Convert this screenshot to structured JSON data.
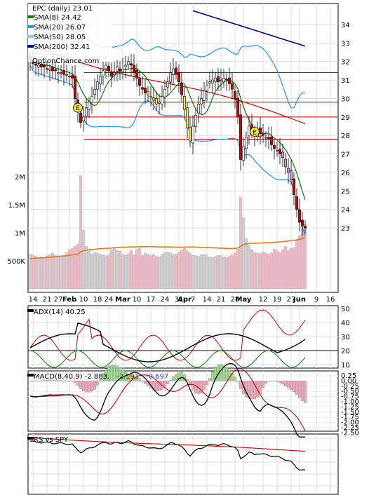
{
  "chart_data": [
    {
      "type": "candlestick",
      "ticker_label": "EPC (daily) 23.01",
      "watermark": "OptionChance.com",
      "legend": [
        {
          "label": "SMA(8) 24.42",
          "color": "#008000"
        },
        {
          "label": "SMA(20) 26.07",
          "color": "#1e90ff"
        },
        {
          "label": "SMA(50) 28.05",
          "color": "#cc0000"
        },
        {
          "label": "SMA(200) 32.41",
          "color": "#00008b"
        }
      ],
      "price_ticks": [
        "23",
        "24",
        "25",
        "26",
        "27",
        "28",
        "29",
        "30",
        "31",
        "32",
        "33",
        "34"
      ],
      "volume_ticks": [
        "500K",
        "1M",
        "1.5M",
        "2M"
      ],
      "date_ticks": [
        {
          "label": "14",
          "i": 1
        },
        {
          "label": "21",
          "i": 6
        },
        {
          "label": "27",
          "i": 10
        },
        {
          "label": "Feb",
          "i": 14
        },
        {
          "label": "10",
          "i": 19
        },
        {
          "label": "18",
          "i": 24
        },
        {
          "label": "24",
          "i": 28
        },
        {
          "label": "Mar",
          "i": 33
        },
        {
          "label": "10",
          "i": 38
        },
        {
          "label": "17",
          "i": 43
        },
        {
          "label": "24",
          "i": 48
        },
        {
          "label": "31",
          "i": 53
        },
        {
          "label": "Apr",
          "i": 55
        },
        {
          "label": "7",
          "i": 58
        },
        {
          "label": "14",
          "i": 63
        },
        {
          "label": "21",
          "i": 68
        },
        {
          "label": "28",
          "i": 73
        },
        {
          "label": "May",
          "i": 76
        },
        {
          "label": "12",
          "i": 83
        },
        {
          "label": "19",
          "i": 88
        },
        {
          "label": "27",
          "i": 93
        },
        {
          "label": "Jun",
          "i": 96
        },
        {
          "label": "9",
          "i": 102
        },
        {
          "label": "16",
          "i": 107
        }
      ],
      "earnings_markers": [
        {
          "label": "E",
          "i": 17,
          "price": 29.5
        },
        {
          "label": "E",
          "i": 80,
          "price": 28.2
        }
      ],
      "horizontal_levels": [
        31.4,
        29.8,
        29.0,
        27.8
      ],
      "closes": [
        32.1,
        31.9,
        31.8,
        31.8,
        31.7,
        31.7,
        31.6,
        31.6,
        31.5,
        31.5,
        31.4,
        31.4,
        31.3,
        31.3,
        31.2,
        31.1,
        30.0,
        29.3,
        28.7,
        29.0,
        29.5,
        29.8,
        30.1,
        30.5,
        30.9,
        31.2,
        31.5,
        31.8,
        31.5,
        31.2,
        31.4,
        31.7,
        31.5,
        31.6,
        31.8,
        32.0,
        31.8,
        31.4,
        31.1,
        30.7,
        30.5,
        30.3,
        30.2,
        30.1,
        29.9,
        29.7,
        29.8,
        30.1,
        30.5,
        30.9,
        31.4,
        31.6,
        31.3,
        30.9,
        30.2,
        29.4,
        28.4,
        27.7,
        28.5,
        29.1,
        29.7,
        30.0,
        30.4,
        30.7,
        30.9,
        31.0,
        31.1,
        30.9,
        31.0,
        31.1,
        31.0,
        30.8,
        30.5,
        30.0,
        29.0,
        26.7,
        27.4,
        27.9,
        28.5,
        28.3,
        28.0,
        28.3,
        28.1,
        28.0,
        27.9,
        27.8,
        27.5,
        27.3,
        27.2,
        27.0,
        26.8,
        26.3,
        26.0,
        25.6,
        24.8,
        24.0,
        23.3,
        23.1,
        23.0
      ],
      "volumes": [
        620,
        600,
        580,
        560,
        570,
        550,
        590,
        610,
        640,
        600,
        580,
        560,
        600,
        650,
        700,
        730,
        760,
        800,
        2020,
        1050,
        760,
        700,
        620,
        650,
        640,
        620,
        600,
        590,
        610,
        700,
        720,
        690,
        680,
        620,
        600,
        640,
        690,
        610,
        700,
        720,
        600,
        640,
        620,
        590,
        610,
        580,
        570,
        620,
        650,
        660,
        640,
        610,
        620,
        650,
        700,
        720,
        680,
        640,
        600,
        590,
        580,
        610,
        620,
        590,
        570,
        560,
        580,
        600,
        590,
        570,
        560,
        590,
        610,
        640,
        710,
        1640,
        1270,
        900,
        780,
        700,
        650,
        640,
        630,
        660,
        640,
        620,
        640,
        710,
        680,
        650,
        700,
        760,
        690,
        720,
        740,
        860,
        950,
        1060,
        1150
      ],
      "vol_avg": [
        540,
        545,
        548,
        550,
        552,
        555,
        560,
        565,
        570,
        575,
        580,
        582,
        585,
        590,
        598,
        606,
        612,
        618,
        660,
        680,
        690,
        698,
        702,
        708,
        712,
        716,
        720,
        722,
        724,
        728,
        734,
        738,
        740,
        742,
        744,
        746,
        748,
        748,
        750,
        752,
        752,
        754,
        754,
        754,
        752,
        750,
        748,
        748,
        748,
        748,
        748,
        746,
        744,
        742,
        742,
        744,
        746,
        746,
        746,
        744,
        742,
        740,
        738,
        736,
        734,
        732,
        730,
        728,
        726,
        724,
        722,
        720,
        720,
        722,
        728,
        760,
        788,
        802,
        808,
        812,
        814,
        816,
        818,
        820,
        822,
        822,
        824,
        830,
        834,
        838,
        842,
        848,
        852,
        858,
        862,
        872,
        884,
        898,
        912
      ],
      "adx": {
        "label": "ADX(14) 40.25",
        "yticks": [
          "10",
          "20",
          "30",
          "40",
          "50"
        ],
        "reference_lines": [
          20
        ]
      },
      "macd": {
        "label": "MACD(8,40,9) -2.883,",
        "signal_label": "-2.191,",
        "hist_label": "-0.697",
        "signal_color": "#cc0000",
        "hist_color": "#1e50c8",
        "yticks": [
          "0.25",
          "0.00",
          "-0.25",
          "-0.50",
          "-0.75",
          "-1.00",
          "-1.25",
          "-1.50",
          "-1.75",
          "-2.00",
          "-2.25",
          "-2.50"
        ]
      },
      "rs": {
        "label": "RS vs SPY"
      }
    }
  ]
}
